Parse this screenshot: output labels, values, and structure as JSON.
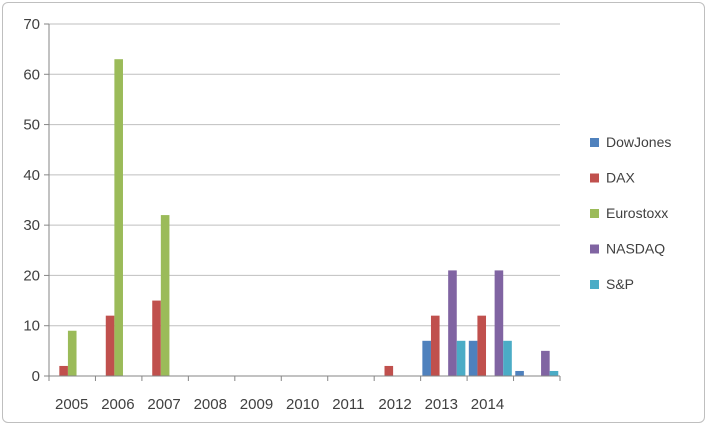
{
  "chart_data": {
    "type": "bar",
    "title": "",
    "xlabel": "",
    "ylabel": "",
    "ylim": [
      0,
      70
    ],
    "yticks": [
      0,
      10,
      20,
      30,
      40,
      50,
      60,
      70
    ],
    "grid": "horizontal",
    "legend_position": "right",
    "categories": [
      "2005",
      "2006",
      "2007",
      "2008",
      "2009",
      "2010",
      "2011",
      "2012",
      "2013",
      "2014",
      ""
    ],
    "series": [
      {
        "name": "DowJones",
        "color": "#4f81bd",
        "values": [
          0,
          0,
          0,
          0,
          0,
          0,
          0,
          0,
          7,
          7,
          1
        ]
      },
      {
        "name": "DAX",
        "color": "#c0504d",
        "values": [
          2,
          12,
          15,
          0,
          0,
          0,
          0,
          2,
          12,
          12,
          0
        ]
      },
      {
        "name": "Eurostoxx",
        "color": "#9bbb59",
        "values": [
          9,
          63,
          32,
          0,
          0,
          0,
          0,
          0,
          0,
          0,
          0
        ]
      },
      {
        "name": "NASDAQ",
        "color": "#8064a2",
        "values": [
          0,
          0,
          0,
          0,
          0,
          0,
          0,
          0,
          21,
          21,
          5
        ]
      },
      {
        "name": "S&P",
        "color": "#4bacc6",
        "values": [
          0,
          0,
          0,
          0,
          0,
          0,
          0,
          0,
          7,
          7,
          1
        ]
      }
    ]
  }
}
